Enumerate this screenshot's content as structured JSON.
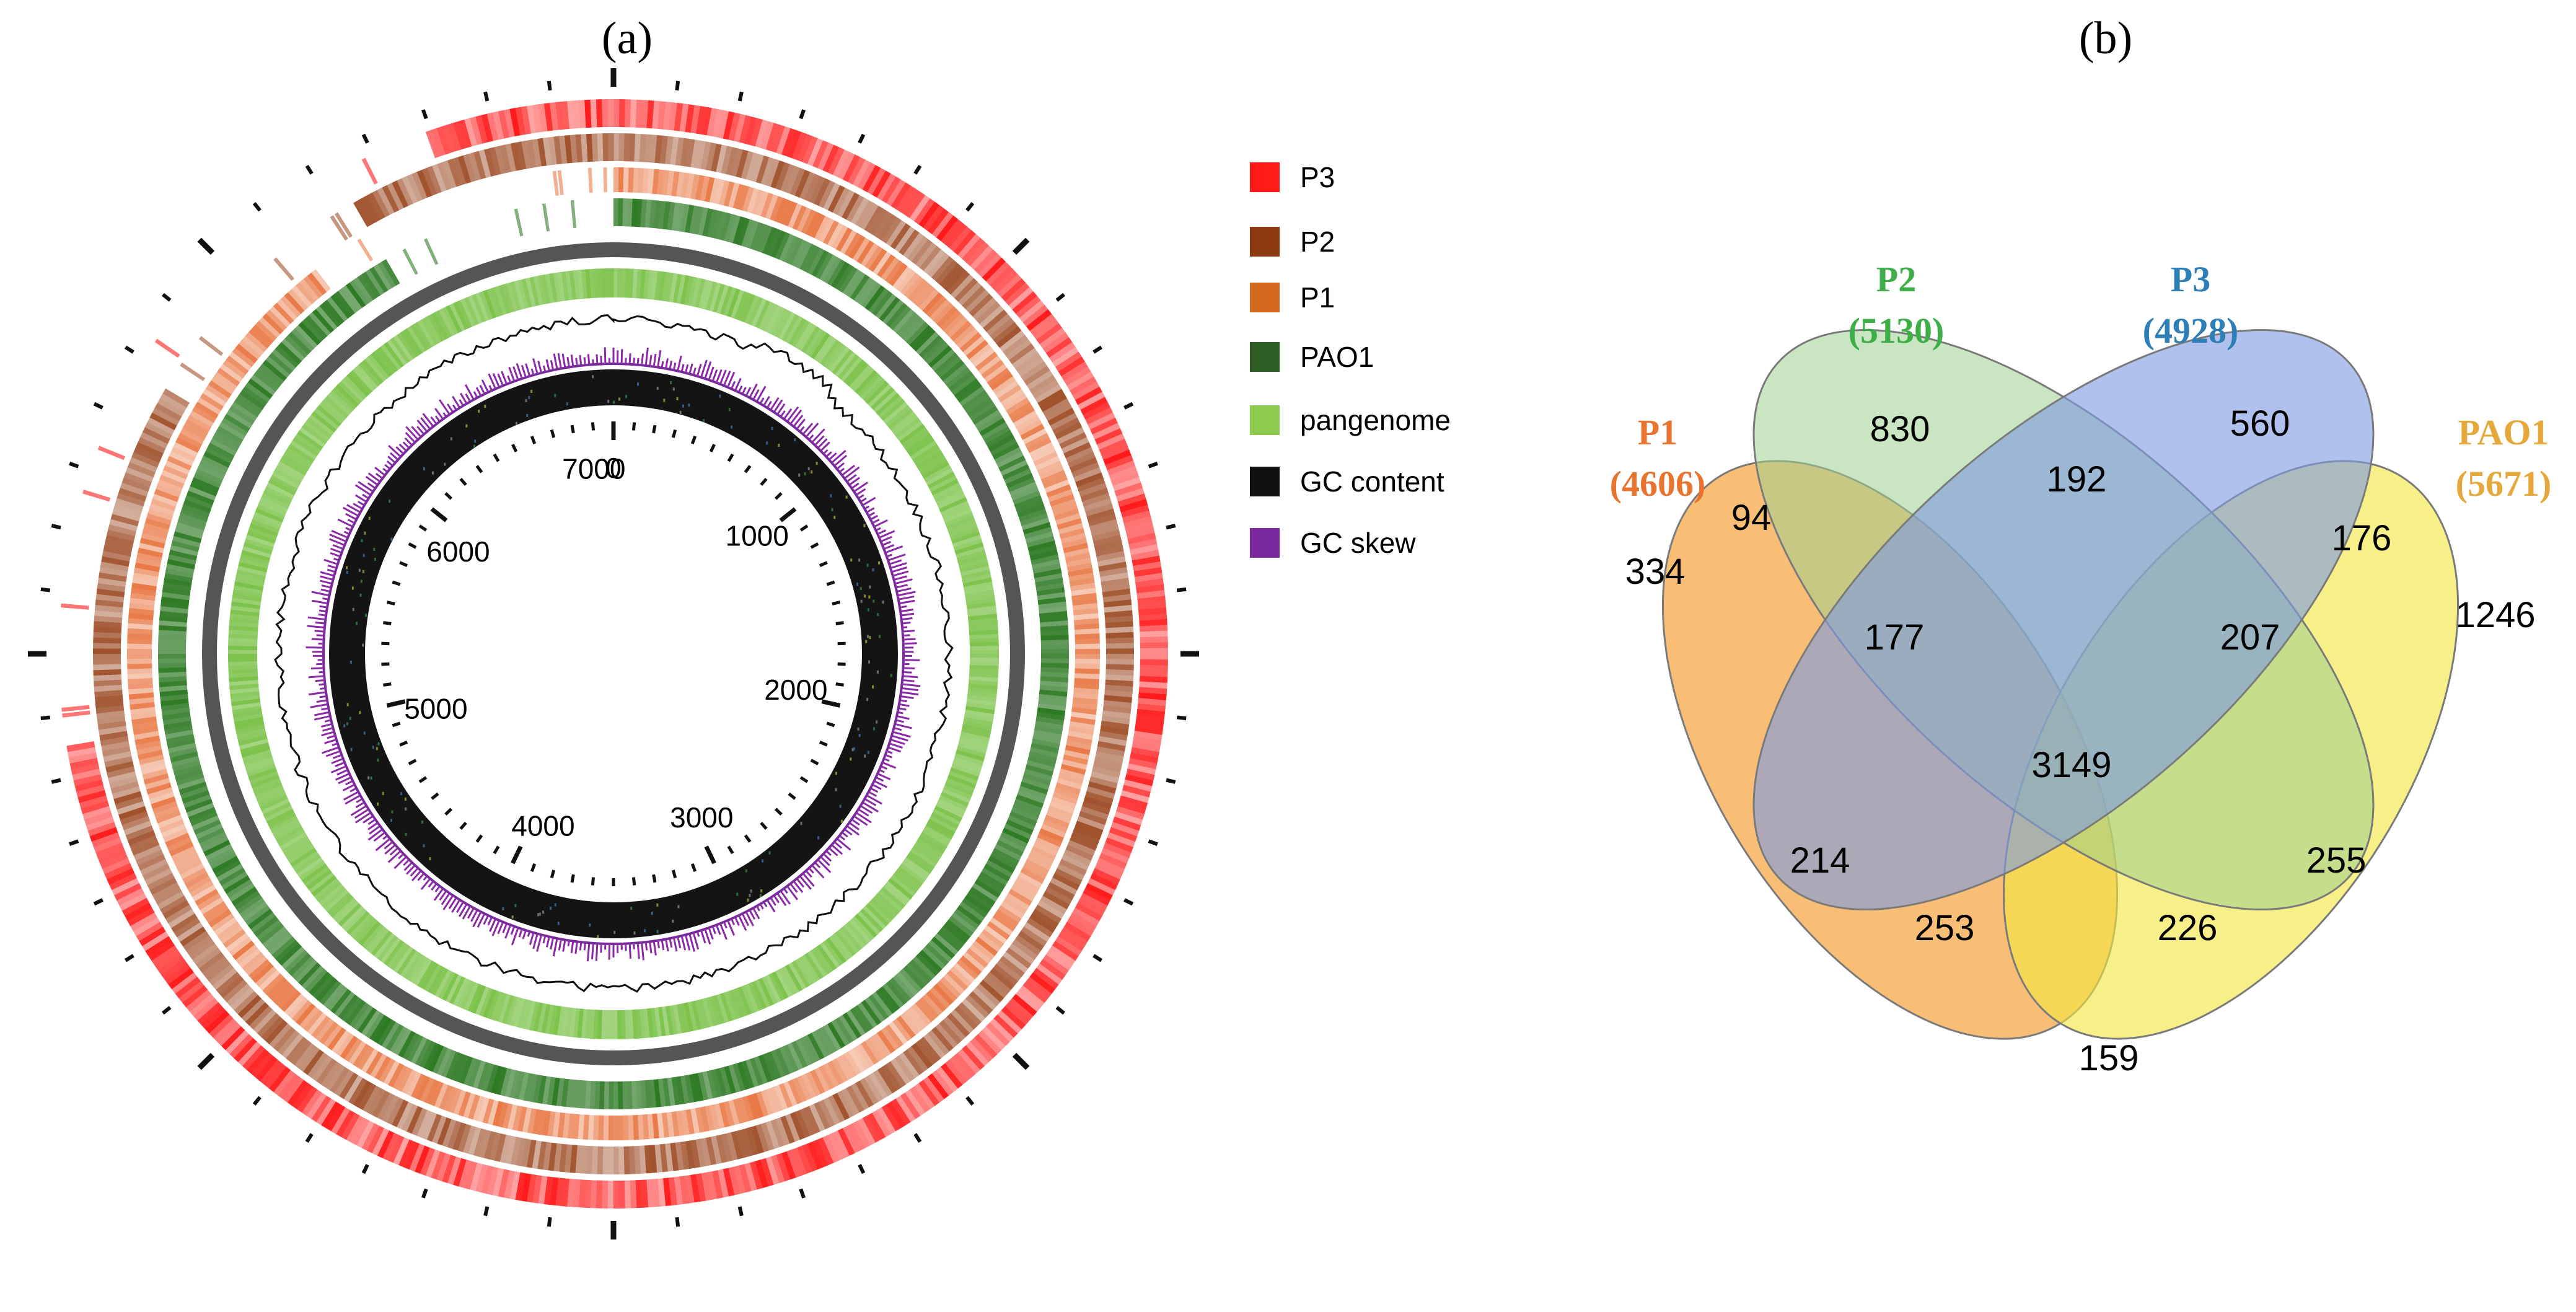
{
  "panels": {
    "a": {
      "label": "(a)"
    },
    "b": {
      "label": "(b)"
    }
  },
  "legend": [
    {
      "label": "P3",
      "color": "#ff1a1a"
    },
    {
      "label": "P2",
      "color": "#8b3a12"
    },
    {
      "label": "P1",
      "color": "#d2691e"
    },
    {
      "label": "PAO1",
      "color": "#2e5e23"
    },
    {
      "label": "pangenome",
      "color": "#8ccb4c"
    },
    {
      "label": "GC content",
      "color": "#111111"
    },
    {
      "label": "GC skew",
      "color": "#7b2a9e"
    }
  ],
  "circos": {
    "ticks": [
      "0",
      "1000",
      "2000",
      "3000",
      "4000",
      "5000",
      "6000",
      "7000"
    ],
    "genome_max_kb": 7000
  },
  "venn": {
    "sets": [
      {
        "name": "P1",
        "count": "(4606)",
        "color": "#e8742f",
        "fill": "#f7a541"
      },
      {
        "name": "P2",
        "count": "(5130)",
        "color": "#3fae49",
        "fill": "#9ed08e"
      },
      {
        "name": "P3",
        "count": "(4928)",
        "color": "#2e7eb8",
        "fill": "#7e9be0"
      },
      {
        "name": "PAO1",
        "count": "(5671)",
        "color": "#e6a83a",
        "fill": "#f2e640"
      }
    ],
    "regions": [
      {
        "key": "P2_only",
        "value": "830"
      },
      {
        "key": "P3_only",
        "value": "560"
      },
      {
        "key": "P2_P3",
        "value": "192"
      },
      {
        "key": "P1_P2",
        "value": "94"
      },
      {
        "key": "P3_PAO1",
        "value": "176"
      },
      {
        "key": "P1_only",
        "value": "334"
      },
      {
        "key": "P1_P2_P3",
        "value": "177"
      },
      {
        "key": "P2_P3_PAO1",
        "value": "207"
      },
      {
        "key": "PAO1_only",
        "value": "1246"
      },
      {
        "key": "all",
        "value": "3149"
      },
      {
        "key": "P1_P3",
        "value": "214"
      },
      {
        "key": "P2_PAO1",
        "value": "255"
      },
      {
        "key": "P1_P3_PAO1",
        "value": "253"
      },
      {
        "key": "P1_P2_PAO1",
        "value": "226"
      },
      {
        "key": "P1_PAO1",
        "value": "159"
      }
    ]
  }
}
